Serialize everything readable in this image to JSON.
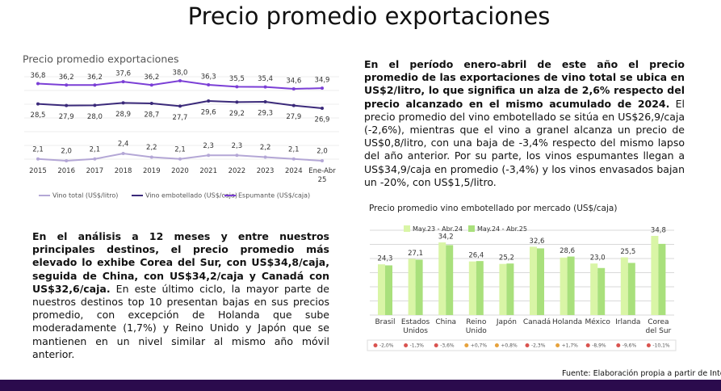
{
  "title": "Precio promedio exportaciones",
  "chart_data": [
    {
      "type": "line",
      "title": "Precio promedio exportaciones",
      "categories": [
        "2015",
        "2016",
        "2017",
        "2018",
        "2019",
        "2020",
        "2021",
        "2022",
        "2023",
        "2024",
        "Ene-Abr 25"
      ],
      "series": [
        {
          "name": "Vino total (US$/litro)",
          "color": "#b4a7d6",
          "values": [
            2.1,
            2.0,
            2.1,
            2.4,
            2.2,
            2.1,
            2.3,
            2.3,
            2.2,
            2.1,
            2.0
          ],
          "value_labels": [
            "2,1",
            "2,0",
            "2,1",
            "2,4",
            "2,2",
            "2,1",
            "2,3",
            "2,3",
            "2,2",
            "2,1",
            "2,0"
          ]
        },
        {
          "name": "Vino embotellado (US$/caja)",
          "color": "#3b2a7a",
          "values": [
            28.5,
            27.9,
            28.0,
            28.9,
            28.7,
            27.7,
            29.6,
            29.2,
            29.3,
            27.9,
            26.9
          ],
          "value_labels": [
            "28,5",
            "27,9",
            "28,0",
            "28,9",
            "28,7",
            "27,7",
            "29,6",
            "29,2",
            "29,3",
            "27,9",
            "26,9"
          ]
        },
        {
          "name": "Espumante (US$/caja)",
          "color": "#7b3fd6",
          "values": [
            36.8,
            36.2,
            36.2,
            37.6,
            36.2,
            38.0,
            36.3,
            35.5,
            35.4,
            34.6,
            34.9
          ],
          "value_labels": [
            "36,8",
            "36,2",
            "36,2",
            "37,6",
            "36,2",
            "38,0",
            "36,3",
            "35,5",
            "35,4",
            "34,6",
            "34,9"
          ]
        }
      ]
    },
    {
      "type": "bar",
      "title": "Precio promedio vino embotellado por mercado (US$/caja)",
      "categories": [
        "Brasil",
        "Estados Unidos",
        "China",
        "Reino Unido",
        "Japón",
        "Canadá",
        "Holanda",
        "México",
        "Irlanda",
        "Corea del Sur"
      ],
      "series": [
        {
          "name": "May.23 - Abr.24",
          "color": "#d9f5a6",
          "values": [
            24.8,
            27.5,
            35.5,
            26.2,
            25.0,
            33.4,
            28.1,
            25.2,
            28.2,
            38.7
          ]
        },
        {
          "name": "May.24 - Abr.25",
          "color": "#a9e07c",
          "values": [
            24.3,
            27.1,
            34.2,
            26.4,
            25.2,
            32.6,
            28.6,
            23.0,
            25.5,
            34.8
          ],
          "value_labels": [
            "24,3",
            "27,1",
            "34,2",
            "26,4",
            "25,2",
            "32,6",
            "28,6",
            "23,0",
            "25,5",
            "34,8"
          ]
        }
      ],
      "changes": [
        "-2,0%",
        "-1,3%",
        "-3,6%",
        "+0,7%",
        "+0,8%",
        "-2,3%",
        "+1,7%",
        "-8,9%",
        "-9,6%",
        "-10,1%"
      ]
    }
  ],
  "paragraphs": [
    {
      "bold": "En el período enero-abril de este año el precio promedio de las exportaciones de vino total se ubica en US$2/litro, lo que significa un alza de 2,6% respecto del precio alcanzado en el mismo acumulado de 2024.",
      "normal": " El precio promedio del vino embotellado se sitúa en US$26,9/caja (-2,6%), mientras que el vino a granel alcanza un precio de US$0,8/litro, con una baja de -3,4% respecto del mismo lapso del año anterior. Por su parte, los vinos espumantes llegan a US$34,9/caja en promedio (-3,4%) y los vinos envasados bajan un -20%, con US$1,5/litro."
    },
    {
      "bold": "En el análisis a 12 meses y entre nuestros principales destinos, el precio promedio más elevado lo exhibe Corea del Sur, con US$34,8/caja, seguida de China, con US$34,2/caja y Canadá con US$32,6/caja.",
      "normal": " En este último ciclo, la mayor parte de nuestros destinos top 10 presentan bajas en sus precios promedio, con excepción de Holanda que sube moderadamente (1,7%) y Reino Unido y Japón que se mantienen en un nivel similar al mismo año móvil anterior."
    }
  ],
  "source": "Fuente: Elaboración propia a partir de Intelv"
}
